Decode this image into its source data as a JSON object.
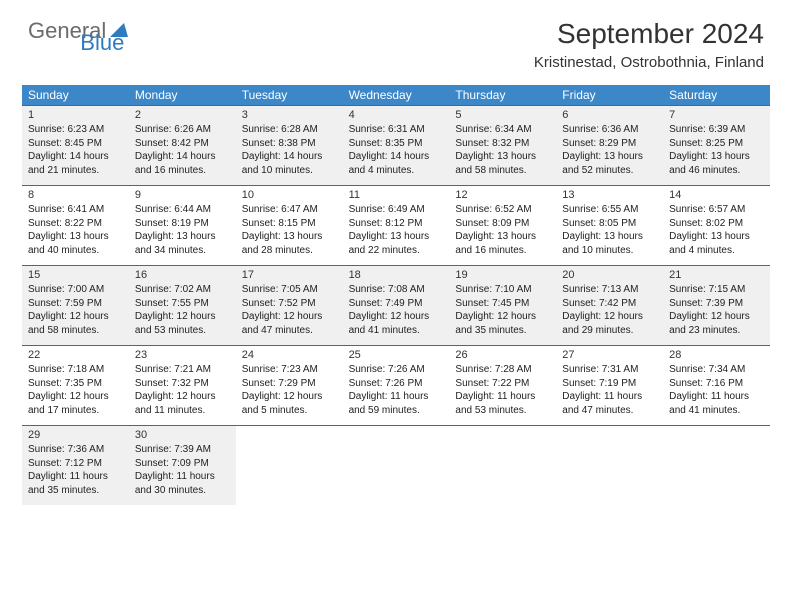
{
  "logo": {
    "text1": "General",
    "text2": "Blue"
  },
  "title": "September 2024",
  "subtitle": "Kristinestad, Ostrobothnia, Finland",
  "colors": {
    "header_bg": "#3b87c8",
    "border": "#2f6ea8",
    "shade": "#f0f0f0",
    "logo_gray": "#6b6b6b",
    "logo_blue": "#2f7bbf"
  },
  "day_headers": [
    "Sunday",
    "Monday",
    "Tuesday",
    "Wednesday",
    "Thursday",
    "Friday",
    "Saturday"
  ],
  "weeks": [
    {
      "shaded": true,
      "cells": [
        {
          "n": "1",
          "sr": "Sunrise: 6:23 AM",
          "ss": "Sunset: 8:45 PM",
          "d1": "Daylight: 14 hours",
          "d2": "and 21 minutes."
        },
        {
          "n": "2",
          "sr": "Sunrise: 6:26 AM",
          "ss": "Sunset: 8:42 PM",
          "d1": "Daylight: 14 hours",
          "d2": "and 16 minutes."
        },
        {
          "n": "3",
          "sr": "Sunrise: 6:28 AM",
          "ss": "Sunset: 8:38 PM",
          "d1": "Daylight: 14 hours",
          "d2": "and 10 minutes."
        },
        {
          "n": "4",
          "sr": "Sunrise: 6:31 AM",
          "ss": "Sunset: 8:35 PM",
          "d1": "Daylight: 14 hours",
          "d2": "and 4 minutes."
        },
        {
          "n": "5",
          "sr": "Sunrise: 6:34 AM",
          "ss": "Sunset: 8:32 PM",
          "d1": "Daylight: 13 hours",
          "d2": "and 58 minutes."
        },
        {
          "n": "6",
          "sr": "Sunrise: 6:36 AM",
          "ss": "Sunset: 8:29 PM",
          "d1": "Daylight: 13 hours",
          "d2": "and 52 minutes."
        },
        {
          "n": "7",
          "sr": "Sunrise: 6:39 AM",
          "ss": "Sunset: 8:25 PM",
          "d1": "Daylight: 13 hours",
          "d2": "and 46 minutes."
        }
      ]
    },
    {
      "shaded": false,
      "cells": [
        {
          "n": "8",
          "sr": "Sunrise: 6:41 AM",
          "ss": "Sunset: 8:22 PM",
          "d1": "Daylight: 13 hours",
          "d2": "and 40 minutes."
        },
        {
          "n": "9",
          "sr": "Sunrise: 6:44 AM",
          "ss": "Sunset: 8:19 PM",
          "d1": "Daylight: 13 hours",
          "d2": "and 34 minutes."
        },
        {
          "n": "10",
          "sr": "Sunrise: 6:47 AM",
          "ss": "Sunset: 8:15 PM",
          "d1": "Daylight: 13 hours",
          "d2": "and 28 minutes."
        },
        {
          "n": "11",
          "sr": "Sunrise: 6:49 AM",
          "ss": "Sunset: 8:12 PM",
          "d1": "Daylight: 13 hours",
          "d2": "and 22 minutes."
        },
        {
          "n": "12",
          "sr": "Sunrise: 6:52 AM",
          "ss": "Sunset: 8:09 PM",
          "d1": "Daylight: 13 hours",
          "d2": "and 16 minutes."
        },
        {
          "n": "13",
          "sr": "Sunrise: 6:55 AM",
          "ss": "Sunset: 8:05 PM",
          "d1": "Daylight: 13 hours",
          "d2": "and 10 minutes."
        },
        {
          "n": "14",
          "sr": "Sunrise: 6:57 AM",
          "ss": "Sunset: 8:02 PM",
          "d1": "Daylight: 13 hours",
          "d2": "and 4 minutes."
        }
      ]
    },
    {
      "shaded": true,
      "cells": [
        {
          "n": "15",
          "sr": "Sunrise: 7:00 AM",
          "ss": "Sunset: 7:59 PM",
          "d1": "Daylight: 12 hours",
          "d2": "and 58 minutes."
        },
        {
          "n": "16",
          "sr": "Sunrise: 7:02 AM",
          "ss": "Sunset: 7:55 PM",
          "d1": "Daylight: 12 hours",
          "d2": "and 53 minutes."
        },
        {
          "n": "17",
          "sr": "Sunrise: 7:05 AM",
          "ss": "Sunset: 7:52 PM",
          "d1": "Daylight: 12 hours",
          "d2": "and 47 minutes."
        },
        {
          "n": "18",
          "sr": "Sunrise: 7:08 AM",
          "ss": "Sunset: 7:49 PM",
          "d1": "Daylight: 12 hours",
          "d2": "and 41 minutes."
        },
        {
          "n": "19",
          "sr": "Sunrise: 7:10 AM",
          "ss": "Sunset: 7:45 PM",
          "d1": "Daylight: 12 hours",
          "d2": "and 35 minutes."
        },
        {
          "n": "20",
          "sr": "Sunrise: 7:13 AM",
          "ss": "Sunset: 7:42 PM",
          "d1": "Daylight: 12 hours",
          "d2": "and 29 minutes."
        },
        {
          "n": "21",
          "sr": "Sunrise: 7:15 AM",
          "ss": "Sunset: 7:39 PM",
          "d1": "Daylight: 12 hours",
          "d2": "and 23 minutes."
        }
      ]
    },
    {
      "shaded": false,
      "cells": [
        {
          "n": "22",
          "sr": "Sunrise: 7:18 AM",
          "ss": "Sunset: 7:35 PM",
          "d1": "Daylight: 12 hours",
          "d2": "and 17 minutes."
        },
        {
          "n": "23",
          "sr": "Sunrise: 7:21 AM",
          "ss": "Sunset: 7:32 PM",
          "d1": "Daylight: 12 hours",
          "d2": "and 11 minutes."
        },
        {
          "n": "24",
          "sr": "Sunrise: 7:23 AM",
          "ss": "Sunset: 7:29 PM",
          "d1": "Daylight: 12 hours",
          "d2": "and 5 minutes."
        },
        {
          "n": "25",
          "sr": "Sunrise: 7:26 AM",
          "ss": "Sunset: 7:26 PM",
          "d1": "Daylight: 11 hours",
          "d2": "and 59 minutes."
        },
        {
          "n": "26",
          "sr": "Sunrise: 7:28 AM",
          "ss": "Sunset: 7:22 PM",
          "d1": "Daylight: 11 hours",
          "d2": "and 53 minutes."
        },
        {
          "n": "27",
          "sr": "Sunrise: 7:31 AM",
          "ss": "Sunset: 7:19 PM",
          "d1": "Daylight: 11 hours",
          "d2": "and 47 minutes."
        },
        {
          "n": "28",
          "sr": "Sunrise: 7:34 AM",
          "ss": "Sunset: 7:16 PM",
          "d1": "Daylight: 11 hours",
          "d2": "and 41 minutes."
        }
      ]
    },
    {
      "shaded": true,
      "cells": [
        {
          "n": "29",
          "sr": "Sunrise: 7:36 AM",
          "ss": "Sunset: 7:12 PM",
          "d1": "Daylight: 11 hours",
          "d2": "and 35 minutes."
        },
        {
          "n": "30",
          "sr": "Sunrise: 7:39 AM",
          "ss": "Sunset: 7:09 PM",
          "d1": "Daylight: 11 hours",
          "d2": "and 30 minutes."
        },
        {
          "empty": true
        },
        {
          "empty": true
        },
        {
          "empty": true
        },
        {
          "empty": true
        },
        {
          "empty": true
        }
      ]
    }
  ]
}
